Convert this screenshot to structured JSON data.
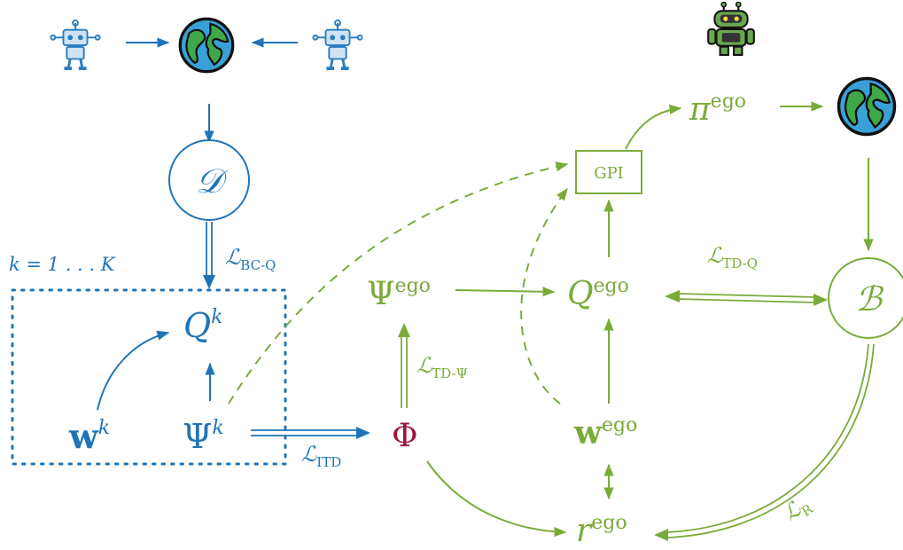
{
  "colors": {
    "blue": "#1f74b8",
    "green": "#7aab3a",
    "red": "#a0143a"
  },
  "icons": {
    "left_agents": [
      "robot-icon",
      "robot-icon"
    ],
    "ego_agent": "robot-icon",
    "environments": [
      "globe-icon",
      "globe-icon"
    ]
  },
  "left": {
    "dataset_symbol": "𝒟",
    "k_range": "k = 1 . . . K",
    "loss_bc_q": {
      "base": "ℒ",
      "sub": "BC-Q"
    },
    "q_k": {
      "base": "Q",
      "sup": "k"
    },
    "w_k": {
      "base": "w",
      "sup": "k"
    },
    "psi_k": {
      "base": "Ψ",
      "sup": "k"
    }
  },
  "center": {
    "loss_itd": {
      "base": "ℒ",
      "sub": "ITD"
    },
    "phi": "Φ",
    "psi_ego": {
      "base": "Ψ",
      "sup": "ego"
    },
    "loss_td_psi": {
      "base": "ℒ",
      "sub": "TD-Ψ"
    }
  },
  "right": {
    "gpi_label": "GPI",
    "pi_ego": {
      "base": "π",
      "sup": "ego"
    },
    "q_ego": {
      "base": "Q",
      "sup": "ego"
    },
    "loss_td_q": {
      "base": "ℒ",
      "sub": "TD-Q"
    },
    "buffer_symbol": "ℬ",
    "w_ego": {
      "base": "w",
      "sup": "ego"
    },
    "r_ego": {
      "base": "r",
      "sup": "ego"
    },
    "loss_r": {
      "base": "ℒ",
      "sub": "R"
    }
  }
}
